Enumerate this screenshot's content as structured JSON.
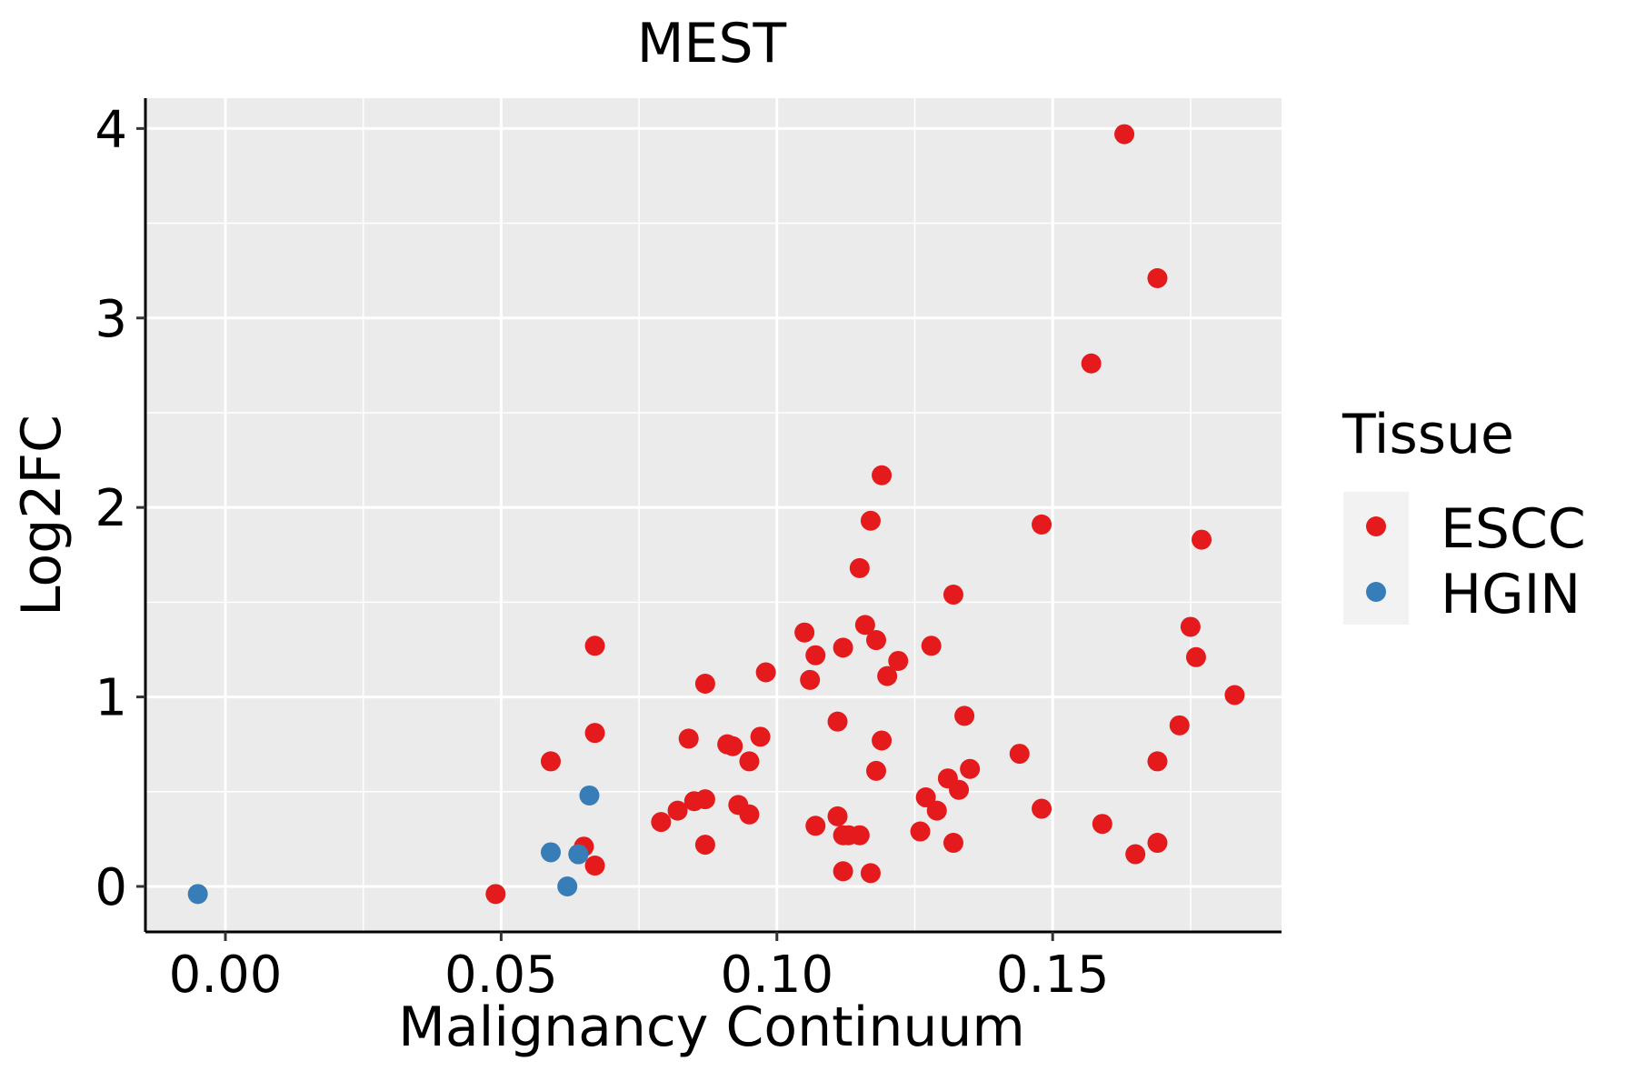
{
  "chart_data": {
    "type": "scatter",
    "title": "MEST",
    "xlabel": "Malignancy Continuum",
    "ylabel": "Log2FC",
    "xlim": [
      -0.0145,
      0.1915
    ],
    "ylim": [
      -0.24,
      4.16
    ],
    "x_ticks": [
      0.0,
      0.05,
      0.1,
      0.15
    ],
    "x_tick_labels": [
      "0.00",
      "0.05",
      "0.10",
      "0.15"
    ],
    "y_ticks": [
      0,
      1,
      2,
      3,
      4
    ],
    "y_tick_labels": [
      "0",
      "1",
      "2",
      "3",
      "4"
    ],
    "grid": true,
    "legend": {
      "title": "Tissue",
      "position": "right",
      "entries": [
        {
          "name": "ESCC",
          "color": "#e41a1c"
        },
        {
          "name": "HGIN",
          "color": "#377eb8"
        }
      ]
    },
    "series": [
      {
        "name": "ESCC",
        "color": "#e41a1c",
        "points": [
          [
            0.049,
            -0.04
          ],
          [
            0.059,
            0.66
          ],
          [
            0.064,
            0.17
          ],
          [
            0.065,
            0.21
          ],
          [
            0.067,
            0.11
          ],
          [
            0.067,
            1.27
          ],
          [
            0.067,
            0.81
          ],
          [
            0.079,
            0.34
          ],
          [
            0.082,
            0.4
          ],
          [
            0.084,
            0.78
          ],
          [
            0.085,
            0.45
          ],
          [
            0.087,
            0.46
          ],
          [
            0.087,
            1.07
          ],
          [
            0.087,
            0.22
          ],
          [
            0.091,
            0.75
          ],
          [
            0.092,
            0.74
          ],
          [
            0.093,
            0.43
          ],
          [
            0.095,
            0.38
          ],
          [
            0.095,
            0.66
          ],
          [
            0.097,
            0.79
          ],
          [
            0.098,
            1.13
          ],
          [
            0.105,
            1.34
          ],
          [
            0.106,
            1.09
          ],
          [
            0.107,
            1.22
          ],
          [
            0.107,
            0.32
          ],
          [
            0.111,
            0.87
          ],
          [
            0.111,
            0.37
          ],
          [
            0.112,
            1.26
          ],
          [
            0.112,
            0.27
          ],
          [
            0.112,
            0.08
          ],
          [
            0.113,
            0.27
          ],
          [
            0.115,
            0.27
          ],
          [
            0.115,
            1.68
          ],
          [
            0.116,
            1.38
          ],
          [
            0.117,
            0.07
          ],
          [
            0.117,
            1.93
          ],
          [
            0.118,
            0.61
          ],
          [
            0.118,
            1.3
          ],
          [
            0.119,
            2.17
          ],
          [
            0.119,
            0.77
          ],
          [
            0.12,
            1.11
          ],
          [
            0.122,
            1.19
          ],
          [
            0.126,
            0.29
          ],
          [
            0.127,
            0.47
          ],
          [
            0.128,
            1.27
          ],
          [
            0.129,
            0.4
          ],
          [
            0.131,
            0.57
          ],
          [
            0.132,
            1.54
          ],
          [
            0.132,
            0.23
          ],
          [
            0.133,
            0.51
          ],
          [
            0.134,
            0.9
          ],
          [
            0.135,
            0.62
          ],
          [
            0.144,
            0.7
          ],
          [
            0.148,
            0.41
          ],
          [
            0.148,
            1.91
          ],
          [
            0.157,
            2.76
          ],
          [
            0.159,
            0.33
          ],
          [
            0.163,
            3.97
          ],
          [
            0.165,
            0.17
          ],
          [
            0.169,
            3.21
          ],
          [
            0.169,
            0.66
          ],
          [
            0.169,
            0.23
          ],
          [
            0.173,
            0.85
          ],
          [
            0.175,
            1.37
          ],
          [
            0.176,
            1.21
          ],
          [
            0.177,
            1.83
          ],
          [
            0.183,
            1.01
          ]
        ]
      },
      {
        "name": "HGIN",
        "color": "#377eb8",
        "points": [
          [
            -0.005,
            -0.04
          ],
          [
            0.059,
            0.18
          ],
          [
            0.062,
            0.0
          ],
          [
            0.064,
            0.17
          ],
          [
            0.066,
            0.48
          ]
        ]
      }
    ]
  }
}
